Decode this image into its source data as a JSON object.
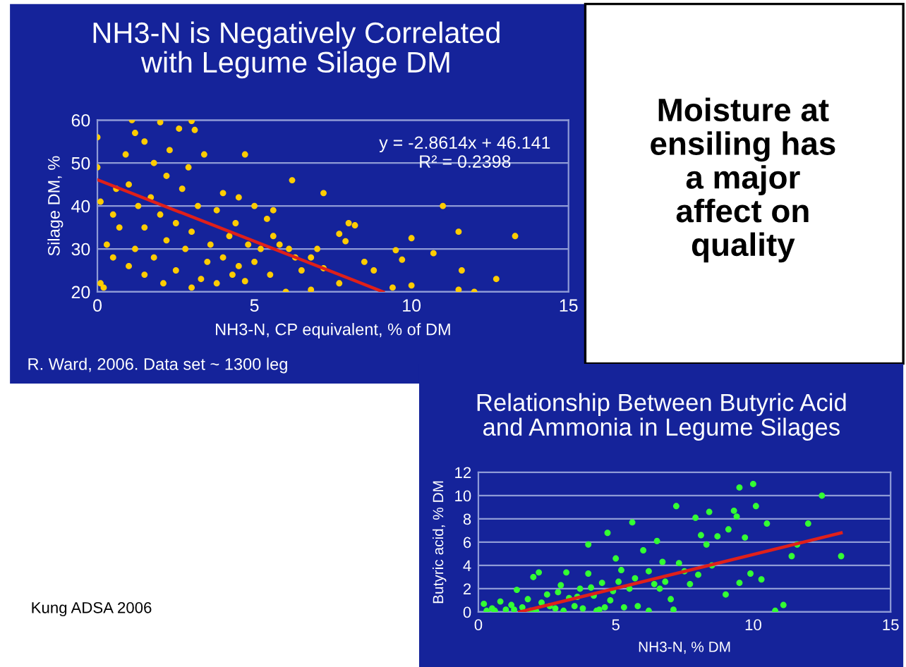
{
  "chart_data": [
    {
      "type": "scatter",
      "title": "NH3-N is Negatively Correlated\nwith Legume Silage DM",
      "xlabel": "NH3-N, CP equivalent, % of DM",
      "ylabel": "Silage DM, %",
      "xlim": [
        0,
        15
      ],
      "xticks": [
        0,
        5,
        10,
        15
      ],
      "ylim": [
        20,
        60
      ],
      "yticks": [
        20,
        30,
        40,
        50,
        60
      ],
      "grid": "y",
      "marker": "circle",
      "annotations": [
        "y = -2.8614x + 46.141",
        "R² = 0.2398",
        "R. Ward, 2006. Data set ~ 1300 leg"
      ],
      "series": [
        {
          "color": "#ffcc00",
          "x": [
            4.7,
            6.2,
            7.2,
            11,
            11.5,
            13.3,
            12.7,
            11.6,
            12,
            11.5,
            10,
            10.7,
            9.5,
            9.7,
            9.4,
            10,
            8.5,
            8.8,
            8.2,
            8,
            7.7,
            7.9,
            7,
            6.8,
            7.2,
            6,
            6.8,
            7.7,
            6.5,
            5,
            5.5,
            5.8,
            6.1,
            5.4,
            5,
            4.5,
            4,
            5.6,
            0,
            0,
            0.1,
            0.1,
            0.2,
            0.3,
            0.5,
            1.1,
            2,
            3,
            3.1,
            3.4,
            2.6,
            1.5,
            1.8,
            2.2,
            1.0,
            1.3,
            2,
            2.5,
            1.5,
            3,
            2.2,
            1.2,
            2.8,
            1.8,
            3.5,
            2.5,
            1.5,
            3.3,
            3.8,
            4.3,
            4,
            3.6,
            4.2,
            4.8,
            4.4,
            3.2,
            2.7,
            3.8,
            1.7,
            0.9,
            1.2,
            0.7,
            0.6,
            2.3,
            2.9,
            4.5,
            5.2,
            5.6,
            6.3,
            4.7,
            3,
            2.1,
            1,
            0.5
          ],
          "values": [
            52,
            46,
            43,
            40,
            34,
            33,
            23,
            25,
            20,
            20.5,
            32.5,
            29,
            29.7,
            27.5,
            21,
            21.5,
            27,
            25,
            35.5,
            36,
            33.5,
            31.8,
            30,
            28,
            25.5,
            20,
            20.5,
            22,
            25,
            27,
            24,
            31,
            30,
            37,
            40,
            42,
            43,
            39,
            56,
            49,
            41,
            22,
            21,
            31,
            28,
            60,
            59.5,
            59.8,
            57.7,
            52,
            58,
            55,
            50,
            47,
            45,
            40,
            38,
            36,
            35,
            34,
            32,
            30,
            30,
            28,
            27,
            25,
            24,
            23,
            22,
            24,
            28,
            31,
            33,
            31,
            36,
            40,
            44,
            39,
            42,
            52,
            57,
            35,
            44,
            53,
            49,
            26,
            30,
            33,
            28,
            22.5,
            21,
            22,
            26,
            38
          ]
        },
        {
          "type": "line",
          "color": "#e0201a",
          "marker": "none",
          "x": [
            0,
            9.1
          ],
          "values": [
            46.1,
            20
          ]
        }
      ]
    },
    {
      "type": "other",
      "annotations": [
        "Moisture at\nensiling has\na major\naffect on\nquality",
        "Kung ADSA 2006"
      ]
    },
    {
      "type": "scatter",
      "title": "Relationship Between Butyric Acid\nand Ammonia in Legume Silages",
      "xlabel": "NH3-N, % DM",
      "ylabel": "Butyric acid, % DM",
      "xlim": [
        0,
        15
      ],
      "xticks": [
        0,
        5,
        10,
        15
      ],
      "ylim": [
        0,
        12
      ],
      "yticks": [
        0,
        2,
        4,
        6,
        8,
        10,
        12
      ],
      "grid": "y",
      "marker": "circle",
      "series": [
        {
          "color": "#33ff33",
          "x": [
            0.2,
            0.3,
            0.5,
            0.8,
            1,
            1.2,
            1.4,
            1.6,
            1.8,
            2,
            2.2,
            2.3,
            2.5,
            2.8,
            3,
            3.2,
            3.3,
            3.5,
            3.7,
            4,
            4,
            4.2,
            4.4,
            4.5,
            4.7,
            4.8,
            5,
            5.2,
            5.3,
            5.5,
            5.6,
            5.8,
            6,
            6.2,
            6.2,
            6.4,
            6.5,
            6.7,
            6.8,
            7,
            7.1,
            7.2,
            7.3,
            7.5,
            7.7,
            7.9,
            8,
            8.1,
            8.3,
            8.4,
            8.5,
            8.7,
            9,
            9.1,
            9.3,
            9.4,
            9.5,
            9.5,
            9.7,
            9.9,
            10,
            10.1,
            10.3,
            10.5,
            10.8,
            11.1,
            11.4,
            11.6,
            12,
            12.5,
            13.2,
            0.6,
            1.3,
            2.1,
            2.6,
            3.1,
            3.8,
            4.3,
            4.6,
            1.9,
            2.9,
            3.6,
            4.1,
            4.9,
            5.1,
            5.7,
            6.6
          ],
          "values": [
            0.7,
            0.1,
            0.3,
            0.9,
            0.2,
            0.6,
            1.9,
            0.4,
            1.1,
            3,
            3.4,
            0.8,
            1.5,
            0.3,
            2.3,
            3.4,
            1.2,
            0.5,
            2,
            5.8,
            3.3,
            1.4,
            0.2,
            2.5,
            6.8,
            1.0,
            4.6,
            3.6,
            0.4,
            2.0,
            7.7,
            0.5,
            5.3,
            3.5,
            0.1,
            2.4,
            6.1,
            4.3,
            2.6,
            1.1,
            0.2,
            9.1,
            4.2,
            3.5,
            2.4,
            8.1,
            3.2,
            6.6,
            5.8,
            8.6,
            4.0,
            6.5,
            1.5,
            7.1,
            8.7,
            8.2,
            2.5,
            10.7,
            6.4,
            3.3,
            11.0,
            9.1,
            2.8,
            7.6,
            0.1,
            0.6,
            4.8,
            5.8,
            7.6,
            10,
            4.8,
            0.1,
            0.2,
            0.1,
            0.5,
            0.1,
            0.3,
            0.1,
            0.4,
            0.1,
            1.7,
            1.3,
            2.1,
            1.8,
            2.6,
            2.9,
            2.0
          ]
        },
        {
          "type": "line",
          "color": "#e0201a",
          "marker": "none",
          "x": [
            1.5,
            13.2
          ],
          "values": [
            0,
            6.8
          ]
        }
      ]
    }
  ]
}
